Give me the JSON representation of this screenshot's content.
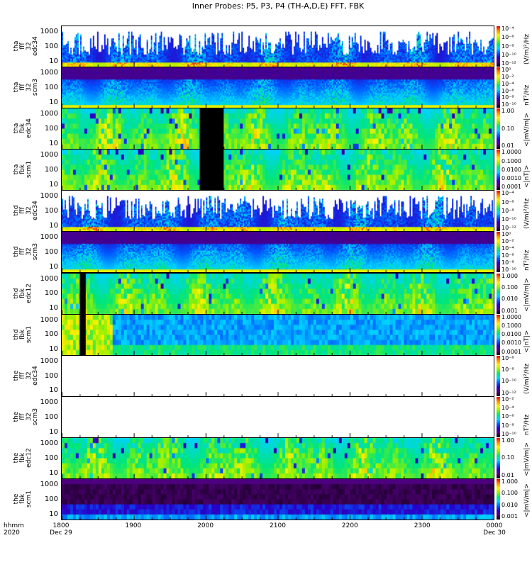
{
  "chart_data": {
    "type": "heatmap",
    "title": "Inner Probes: P5, P3, P4 (TH-A,D,E) FFT, FBK",
    "xlabel": "hhmm 2020",
    "x_ticks": [
      "1800",
      "1900",
      "2000",
      "2100",
      "2200",
      "2300",
      "0000"
    ],
    "x_dates": [
      "Dec 29",
      "",
      "",
      "",
      "",
      "",
      "Dec 30"
    ],
    "x_prefix": [
      "hhmm",
      "2020"
    ],
    "ylim_hz": [
      3,
      2000
    ],
    "y_ticks": [
      "1000",
      "100",
      "10"
    ],
    "panels": [
      {
        "label": "tha\nfff\n32\nedc34",
        "kind": "fffe",
        "unit": "(V/m)²/Hz",
        "cb_ticks": [
          "10⁻⁴",
          "10⁻⁶",
          "10⁻⁸",
          "10⁻¹⁰",
          "10⁻¹²"
        ]
      },
      {
        "label": "tha\nfff\n32\nscm3",
        "kind": "fffb",
        "unit": "nT²/Hz",
        "cb_ticks": [
          "10⁰",
          "10⁻²",
          "10⁻⁴",
          "10⁻⁶",
          "10⁻⁸",
          "10⁻¹⁰"
        ]
      },
      {
        "label": "tha\nfbk\nedc34",
        "kind": "fbk",
        "gap": [
          1955,
          2015
        ],
        "unit": "<|mV/m|>",
        "cb_ticks": [
          "1.00",
          "0.10",
          "0.01"
        ]
      },
      {
        "label": "tha\nfbk\nscm1",
        "kind": "fbk",
        "gap": [
          1955,
          2015
        ],
        "unit": "<|nT|>",
        "cb_ticks": [
          "1.0000",
          "0.1000",
          "0.0100",
          "0.0010",
          "0.0001"
        ]
      },
      {
        "label": "thd\nfff\n32\nedc34",
        "kind": "fffe",
        "unit": "(V/m)²/Hz",
        "cb_ticks": [
          "10⁻⁴",
          "10⁻⁶",
          "10⁻⁸",
          "10⁻¹⁰",
          "10⁻¹²"
        ]
      },
      {
        "label": "thd\nfff\n32\nscm3",
        "kind": "fffb",
        "unit": "nT²/Hz",
        "cb_ticks": [
          "10⁰",
          "10⁻²",
          "10⁻⁴",
          "10⁻⁶",
          "10⁻⁸",
          "10⁻¹⁰"
        ]
      },
      {
        "label": "thd\nfbk\nedc12",
        "kind": "fbk",
        "gap": [
          1815,
          1820
        ],
        "unit": "<|mV/m|>",
        "cb_ticks": [
          "1.000",
          "0.100",
          "0.010",
          "0.001"
        ]
      },
      {
        "label": "thd\nfbk\nscm1",
        "kind": "fbkq",
        "gap": [
          1815,
          1820
        ],
        "unit": "<|nT|>",
        "cb_ticks": [
          "1.0000",
          "0.1000",
          "0.0100",
          "0.0010",
          "0.0001"
        ]
      },
      {
        "label": "the\nfff\n32\nedc34",
        "kind": "empty",
        "unit": "(V/m)²/Hz",
        "cb_ticks": [
          "10⁻⁶",
          "10⁻⁸",
          "10⁻¹⁰",
          "10⁻¹²"
        ]
      },
      {
        "label": "the\nfff\n32\nscm3",
        "kind": "empty",
        "unit": "nT²/Hz",
        "cb_ticks": [
          "10⁻²",
          "10⁻⁴",
          "10⁻⁶",
          "10⁻⁸",
          "10⁻¹⁰"
        ]
      },
      {
        "label": "the\nfbk\nedc12",
        "kind": "fbk",
        "unit": "<|mV/m|>",
        "cb_ticks": [
          "1.00",
          "0.10",
          "0.01"
        ]
      },
      {
        "label": "the\nfbk\nscm1",
        "kind": "bands",
        "unit": "<|mV/m|>",
        "cb_ticks": [
          "1.000",
          "0.100",
          "0.010",
          "0.001"
        ]
      }
    ]
  }
}
